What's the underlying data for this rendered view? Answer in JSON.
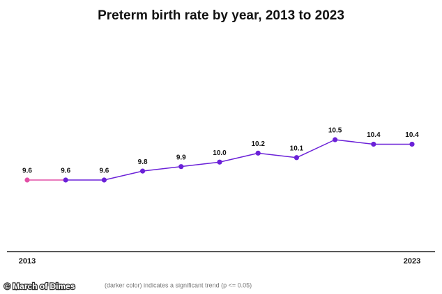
{
  "chart_data": {
    "type": "line",
    "title": "Preterm birth rate by year, 2013 to 2023",
    "categories": [
      "2013",
      null,
      null,
      null,
      null,
      null,
      null,
      null,
      null,
      null,
      "2023"
    ],
    "series": [
      {
        "color": "#6b21d8",
        "values": [
          9.6,
          9.6,
          9.6,
          9.8,
          9.9,
          10.0,
          10.2,
          10.1,
          10.5,
          10.4,
          10.4
        ],
        "value_labels": [
          "9.6",
          "9.6",
          "9.6",
          "9.8",
          "9.9",
          "10.0",
          "10.2",
          "10.1",
          "10.5",
          "10.4",
          "10.4"
        ],
        "point_colors": [
          "#e24fa6",
          "#6b21d8",
          "#6b21d8",
          "#6b21d8",
          "#6b21d8",
          "#6b21d8",
          "#6b21d8",
          "#6b21d8",
          "#6b21d8",
          "#6b21d8",
          "#6b21d8"
        ]
      }
    ],
    "footnote": "(darker color) indicates a significant trend (p <= 0.05)",
    "watermark": "© March of Dimes"
  }
}
